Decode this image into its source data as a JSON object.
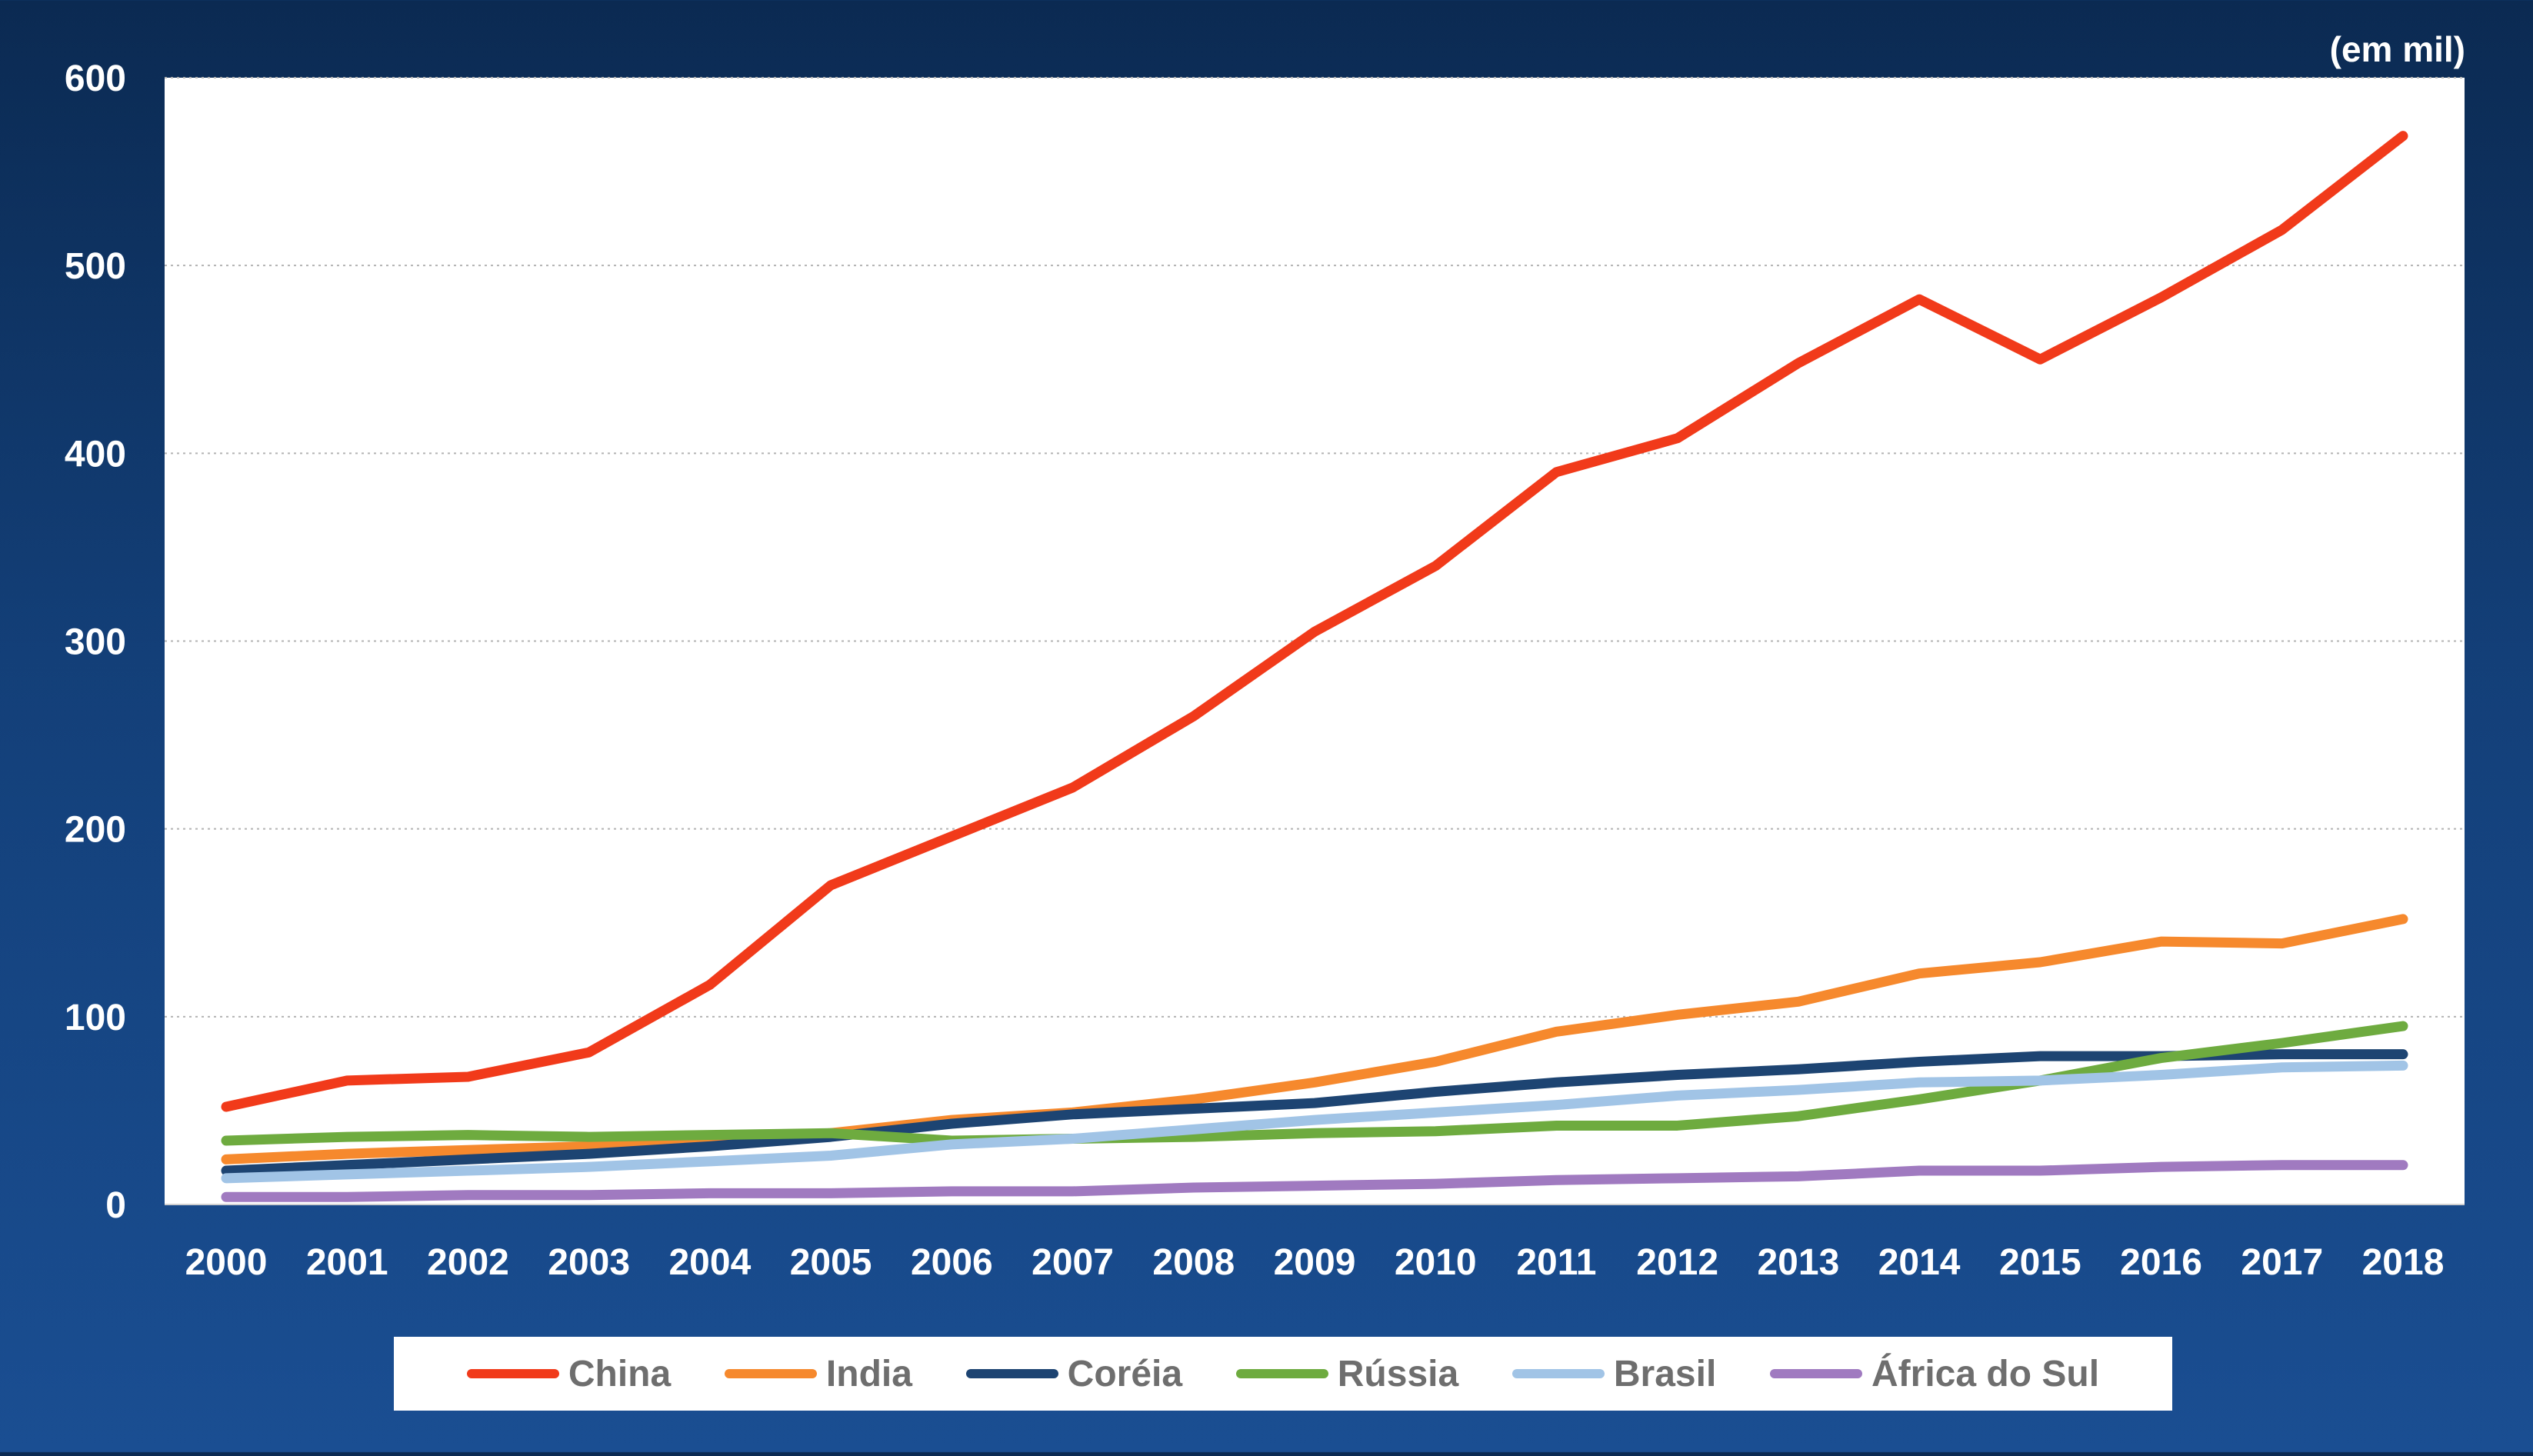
{
  "unit_label": "(em mil)",
  "chart_data": {
    "type": "line",
    "title": "",
    "xlabel": "",
    "ylabel": "",
    "ylim": [
      0,
      600
    ],
    "yticks": [
      0,
      100,
      200,
      300,
      400,
      500,
      600
    ],
    "categories": [
      "2000",
      "2001",
      "2002",
      "2003",
      "2004",
      "2005",
      "2006",
      "2007",
      "2008",
      "2009",
      "2010",
      "2011",
      "2012",
      "2013",
      "2014",
      "2015",
      "2016",
      "2017",
      "2018"
    ],
    "grid": "horizontal dotted",
    "legend_position": "bottom",
    "series": [
      {
        "name": "China",
        "color": "#f13a1a",
        "values": [
          52,
          66,
          68,
          81,
          117,
          170,
          196,
          222,
          260,
          305,
          340,
          390,
          408,
          448,
          482,
          450,
          483,
          519,
          569
        ]
      },
      {
        "name": "India",
        "color": "#f6892d",
        "values": [
          24,
          27,
          29,
          31,
          34,
          38,
          45,
          49,
          56,
          65,
          76,
          92,
          101,
          108,
          123,
          129,
          140,
          139,
          152
        ]
      },
      {
        "name": "Coréia",
        "color": "#1d4472",
        "values": [
          18,
          21,
          24,
          27,
          31,
          36,
          43,
          48,
          51,
          54,
          60,
          65,
          69,
          72,
          76,
          79,
          79,
          80,
          80
        ]
      },
      {
        "name": "Rússia",
        "color": "#6eab3f",
        "values": [
          34,
          36,
          37,
          36,
          37,
          38,
          34,
          35,
          36,
          38,
          39,
          42,
          42,
          47,
          56,
          66,
          78,
          86,
          95
        ]
      },
      {
        "name": "Brasil",
        "color": "#a1c4e6",
        "values": [
          14,
          16,
          18,
          20,
          23,
          26,
          32,
          35,
          40,
          45,
          49,
          53,
          58,
          61,
          65,
          66,
          69,
          73,
          74
        ]
      },
      {
        "name": "África do Sul",
        "color": "#a07ac0",
        "values": [
          4,
          4,
          5,
          5,
          6,
          6,
          7,
          7,
          9,
          10,
          11,
          13,
          14,
          15,
          18,
          18,
          20,
          21,
          21
        ]
      }
    ]
  }
}
